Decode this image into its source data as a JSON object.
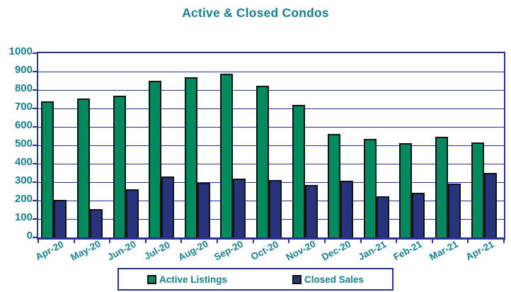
{
  "title": "Active & Closed Condos",
  "colors": {
    "title_text": "#17808c",
    "axis_text": "#17808c",
    "grid_and_frame": "#2d3191",
    "active_listings_bar": "#008a5e",
    "closed_sales_bar": "#27337d",
    "bar_outline": "#121212",
    "background": "#ffffff"
  },
  "chart_data": {
    "type": "bar",
    "title": "Active & Closed Condos",
    "categories": [
      "Apr-20",
      "May-20",
      "Jun-20",
      "Jul-20",
      "Aug-20",
      "Sep-20",
      "Oct-20",
      "Nov-20",
      "Dec-20",
      "Jan-21",
      "Feb-21",
      "Mar-21",
      "Apr-21"
    ],
    "series": [
      {
        "name": "Active Listings",
        "color": "#008a5e",
        "values": [
          740,
          755,
          770,
          850,
          870,
          890,
          825,
          720,
          560,
          535,
          510,
          545,
          515
        ]
      },
      {
        "name": "Closed Sales",
        "color": "#27337d",
        "values": [
          203,
          155,
          260,
          332,
          295,
          318,
          310,
          286,
          309,
          224,
          244,
          291,
          350
        ]
      }
    ],
    "xlabel": "",
    "ylabel": "",
    "ylim": [
      0,
      1000
    ],
    "yticks": [
      0,
      100,
      200,
      300,
      400,
      500,
      600,
      700,
      800,
      900,
      1000
    ],
    "grid": true,
    "legend_position": "bottom"
  },
  "legend": {
    "items": [
      "Active Listings",
      "Closed Sales"
    ]
  }
}
